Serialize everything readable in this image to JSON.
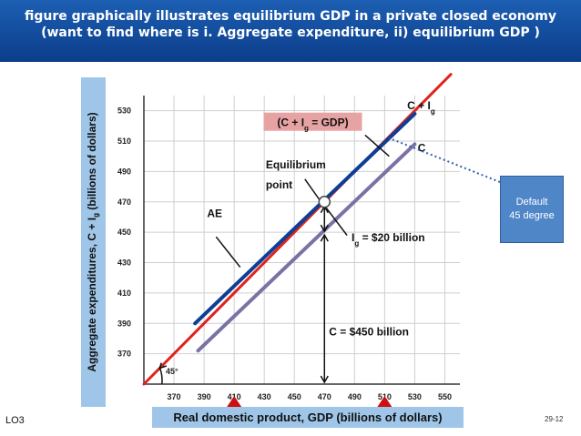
{
  "title": {
    "line1": "figure graphically illustrates equilibrium GDP in a private closed economy",
    "line2": "(want to find where is i. Aggregate expenditure, ii) equilibrium GDP )"
  },
  "footer": {
    "left": "LO3",
    "right": "29-12"
  },
  "callout": {
    "text": "Default 45 degree"
  },
  "chart_data": {
    "type": "line",
    "xlabel": "Real domestic product, GDP (billions of dollars)",
    "ylabel": "Aggregate expenditures, C + Ig (billions of dollars)",
    "x_ticks": [
      370,
      390,
      410,
      430,
      450,
      470,
      490,
      510,
      530,
      550
    ],
    "y_ticks": [
      370,
      390,
      410,
      430,
      450,
      470,
      490,
      510,
      530
    ],
    "xlim": [
      350,
      560
    ],
    "ylim": [
      350,
      540
    ],
    "grid": true,
    "series": [
      {
        "name": "45°",
        "color": "#e0231c",
        "x": [
          350,
          554
        ],
        "y": [
          350,
          554
        ]
      },
      {
        "name": "C + Ig",
        "color": "#0c3f95",
        "x": [
          384,
          530
        ],
        "y": [
          390,
          528
        ]
      },
      {
        "name": "C",
        "color": "#7a72a6",
        "x": [
          386,
          530
        ],
        "y": [
          372,
          508
        ]
      }
    ],
    "annotations": {
      "equilibrium_tag": "(C + Ig = GDP)",
      "equilibrium_point": "Equilibrium point",
      "ae": "AE",
      "ig": "Ig = $20 billion",
      "c": "C = $450 billion",
      "angle": "45°",
      "c_plus_ig_label": "C + Ig",
      "c_label": "C"
    },
    "equilibrium": {
      "x": 470,
      "y": 470
    },
    "ig_point": {
      "x": 470,
      "y": 450
    },
    "markers_x": [
      410,
      510
    ]
  }
}
